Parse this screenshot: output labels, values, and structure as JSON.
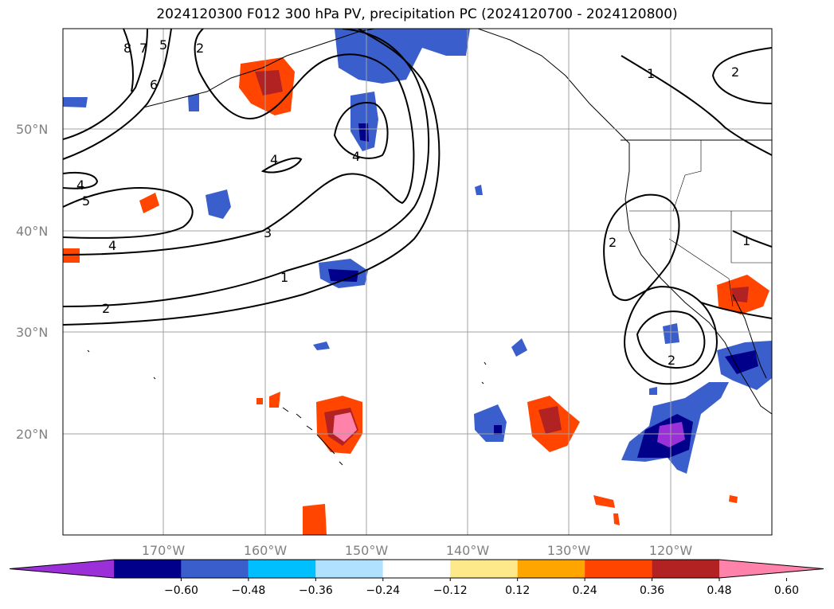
{
  "title": "2024120300 F012 300 hPa PV, precipitation PC (2024120700 - 2024120800)",
  "lat_ticks": [
    {
      "label": "50°N",
      "lat": 50
    },
    {
      "label": "40°N",
      "lat": 40
    },
    {
      "label": "30°N",
      "lat": 30
    },
    {
      "label": "20°N",
      "lat": 20
    }
  ],
  "lon_ticks": [
    {
      "label": "170°W",
      "lon": -170
    },
    {
      "label": "160°W",
      "lon": -160
    },
    {
      "label": "150°W",
      "lon": -150
    },
    {
      "label": "140°W",
      "lon": -140
    },
    {
      "label": "130°W",
      "lon": -130
    },
    {
      "label": "120°W",
      "lon": -120
    }
  ],
  "colorbar": {
    "ticks": [
      "−0.60",
      "−0.48",
      "−0.36",
      "−0.24",
      "−0.12",
      "0.12",
      "0.24",
      "0.36",
      "0.48",
      "0.60"
    ],
    "colors": [
      "#9b30d9",
      "#00008b",
      "#3a5fcd",
      "#00bfff",
      "#b0e2ff",
      "#ffffff",
      "#fde88a",
      "#ffa500",
      "#ff4500",
      "#b22222",
      "#ff82ab"
    ]
  },
  "contour_labels": [
    "8",
    "7",
    "5",
    "2",
    "6",
    "4",
    "5",
    "4",
    "4",
    "4",
    "3",
    "1",
    "2",
    "1",
    "2",
    "2",
    "2",
    "1"
  ]
}
